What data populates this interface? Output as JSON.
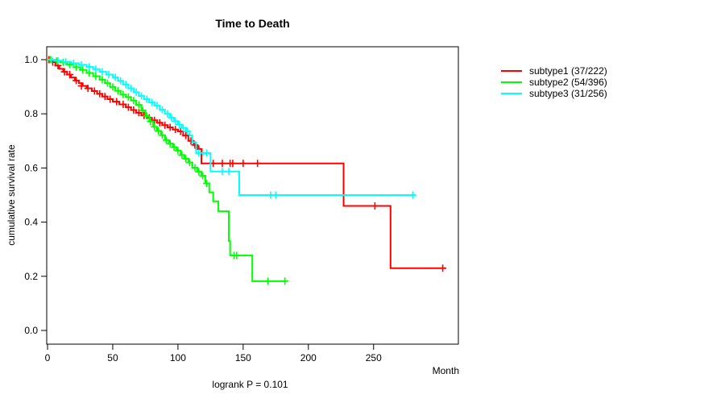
{
  "chart_data": {
    "type": "line",
    "variant": "kaplan-meier-step",
    "title": "Time to Death",
    "xlabel": "Month",
    "ylabel": "cumulative survival rate",
    "footnote": "logrank P = 0.101",
    "xlim": [
      0,
      315
    ],
    "ylim": [
      0,
      1
    ],
    "xticks": [
      0,
      50,
      100,
      150,
      200,
      250
    ],
    "yticks": [
      0.0,
      0.2,
      0.4,
      0.6,
      0.8,
      1.0
    ],
    "grid": false,
    "legend_position": "right-outside",
    "frame_color": "#000000",
    "series": [
      {
        "name": "subtype1",
        "label": "subtype1 (37/222)",
        "color": "#FF0000",
        "events": 37,
        "n": 222,
        "end_time": 305,
        "steps": [
          [
            0,
            1.0
          ],
          [
            3,
            0.991
          ],
          [
            6,
            0.978
          ],
          [
            9,
            0.966
          ],
          [
            12,
            0.955
          ],
          [
            15,
            0.945
          ],
          [
            18,
            0.934
          ],
          [
            21,
            0.923
          ],
          [
            24,
            0.913
          ],
          [
            27,
            0.903
          ],
          [
            30,
            0.894
          ],
          [
            34,
            0.884
          ],
          [
            38,
            0.874
          ],
          [
            42,
            0.864
          ],
          [
            46,
            0.854
          ],
          [
            50,
            0.845
          ],
          [
            55,
            0.835
          ],
          [
            60,
            0.824
          ],
          [
            64,
            0.814
          ],
          [
            68,
            0.804
          ],
          [
            72,
            0.794
          ],
          [
            76,
            0.785
          ],
          [
            80,
            0.776
          ],
          [
            84,
            0.767
          ],
          [
            88,
            0.758
          ],
          [
            92,
            0.75
          ],
          [
            96,
            0.742
          ],
          [
            100,
            0.735
          ],
          [
            104,
            0.72
          ],
          [
            108,
            0.7
          ],
          [
            112,
            0.685
          ],
          [
            115,
            0.67
          ],
          [
            118,
            0.617
          ],
          [
            227,
            0.46
          ],
          [
            263,
            0.23
          ]
        ],
        "censors": [
          [
            1,
            1.0
          ],
          [
            4,
            0.991
          ],
          [
            8,
            0.978
          ],
          [
            13,
            0.955
          ],
          [
            17,
            0.945
          ],
          [
            22,
            0.923
          ],
          [
            26,
            0.903
          ],
          [
            31,
            0.894
          ],
          [
            36,
            0.884
          ],
          [
            40,
            0.874
          ],
          [
            44,
            0.864
          ],
          [
            48,
            0.854
          ],
          [
            53,
            0.845
          ],
          [
            58,
            0.835
          ],
          [
            62,
            0.824
          ],
          [
            66,
            0.814
          ],
          [
            70,
            0.804
          ],
          [
            74,
            0.794
          ],
          [
            78,
            0.785
          ],
          [
            82,
            0.776
          ],
          [
            86,
            0.767
          ],
          [
            90,
            0.758
          ],
          [
            94,
            0.75
          ],
          [
            98,
            0.742
          ],
          [
            102,
            0.735
          ],
          [
            106,
            0.72
          ],
          [
            110,
            0.7
          ],
          [
            113,
            0.685
          ],
          [
            116,
            0.67
          ],
          [
            127,
            0.617
          ],
          [
            134,
            0.617
          ],
          [
            140,
            0.617
          ],
          [
            142,
            0.617
          ],
          [
            150,
            0.617
          ],
          [
            161,
            0.617
          ],
          [
            251,
            0.46
          ],
          [
            303,
            0.23
          ]
        ]
      },
      {
        "name": "subtype2",
        "label": "subtype2 (54/396)",
        "color": "#00FF00",
        "events": 54,
        "n": 396,
        "end_time": 183,
        "steps": [
          [
            0,
            1.0
          ],
          [
            5,
            0.995
          ],
          [
            10,
            0.99
          ],
          [
            15,
            0.982
          ],
          [
            20,
            0.972
          ],
          [
            25,
            0.962
          ],
          [
            30,
            0.951
          ],
          [
            35,
            0.939
          ],
          [
            40,
            0.926
          ],
          [
            44,
            0.913
          ],
          [
            48,
            0.899
          ],
          [
            52,
            0.885
          ],
          [
            56,
            0.871
          ],
          [
            60,
            0.862
          ],
          [
            64,
            0.849
          ],
          [
            68,
            0.833
          ],
          [
            72,
            0.812
          ],
          [
            75,
            0.792
          ],
          [
            78,
            0.772
          ],
          [
            81,
            0.752
          ],
          [
            84,
            0.737
          ],
          [
            87,
            0.721
          ],
          [
            90,
            0.703
          ],
          [
            93,
            0.69
          ],
          [
            96,
            0.677
          ],
          [
            99,
            0.664
          ],
          [
            102,
            0.648
          ],
          [
            105,
            0.634
          ],
          [
            108,
            0.62
          ],
          [
            111,
            0.601
          ],
          [
            115,
            0.586
          ],
          [
            118,
            0.571
          ],
          [
            121,
            0.543
          ],
          [
            124,
            0.51
          ],
          [
            127,
            0.477
          ],
          [
            131,
            0.44
          ],
          [
            139,
            0.33
          ],
          [
            140,
            0.277
          ],
          [
            157,
            0.182
          ]
        ],
        "censors": [
          [
            2,
            1.0
          ],
          [
            7,
            0.995
          ],
          [
            12,
            0.99
          ],
          [
            17,
            0.982
          ],
          [
            22,
            0.972
          ],
          [
            27,
            0.962
          ],
          [
            32,
            0.951
          ],
          [
            37,
            0.939
          ],
          [
            42,
            0.926
          ],
          [
            46,
            0.913
          ],
          [
            50,
            0.899
          ],
          [
            54,
            0.885
          ],
          [
            58,
            0.871
          ],
          [
            62,
            0.862
          ],
          [
            66,
            0.849
          ],
          [
            70,
            0.833
          ],
          [
            73,
            0.812
          ],
          [
            76,
            0.792
          ],
          [
            79,
            0.772
          ],
          [
            82,
            0.752
          ],
          [
            85,
            0.737
          ],
          [
            88,
            0.721
          ],
          [
            91,
            0.703
          ],
          [
            94,
            0.69
          ],
          [
            97,
            0.677
          ],
          [
            100,
            0.664
          ],
          [
            103,
            0.648
          ],
          [
            106,
            0.634
          ],
          [
            109,
            0.62
          ],
          [
            113,
            0.601
          ],
          [
            116,
            0.586
          ],
          [
            119,
            0.571
          ],
          [
            122,
            0.543
          ],
          [
            143,
            0.277
          ],
          [
            145,
            0.277
          ],
          [
            169,
            0.182
          ],
          [
            182,
            0.182
          ]
        ]
      },
      {
        "name": "subtype3",
        "label": "subtype3 (31/256)",
        "color": "#00FFFF",
        "events": 31,
        "n": 256,
        "end_time": 282,
        "steps": [
          [
            0,
            1.0
          ],
          [
            6,
            0.996
          ],
          [
            12,
            0.992
          ],
          [
            18,
            0.987
          ],
          [
            24,
            0.981
          ],
          [
            30,
            0.973
          ],
          [
            35,
            0.965
          ],
          [
            40,
            0.955
          ],
          [
            45,
            0.945
          ],
          [
            50,
            0.935
          ],
          [
            54,
            0.922
          ],
          [
            58,
            0.908
          ],
          [
            62,
            0.894
          ],
          [
            66,
            0.88
          ],
          [
            70,
            0.866
          ],
          [
            74,
            0.854
          ],
          [
            78,
            0.842
          ],
          [
            82,
            0.83
          ],
          [
            86,
            0.815
          ],
          [
            90,
            0.8
          ],
          [
            94,
            0.786
          ],
          [
            97,
            0.773
          ],
          [
            100,
            0.76
          ],
          [
            103,
            0.748
          ],
          [
            106,
            0.736
          ],
          [
            109,
            0.72
          ],
          [
            111,
            0.695
          ],
          [
            114,
            0.655
          ],
          [
            125,
            0.587
          ],
          [
            147,
            0.5
          ]
        ],
        "censors": [
          [
            3,
            1.0
          ],
          [
            8,
            0.996
          ],
          [
            14,
            0.992
          ],
          [
            20,
            0.987
          ],
          [
            26,
            0.981
          ],
          [
            32,
            0.973
          ],
          [
            37,
            0.965
          ],
          [
            42,
            0.955
          ],
          [
            47,
            0.945
          ],
          [
            52,
            0.935
          ],
          [
            56,
            0.922
          ],
          [
            60,
            0.908
          ],
          [
            64,
            0.894
          ],
          [
            68,
            0.88
          ],
          [
            72,
            0.866
          ],
          [
            76,
            0.854
          ],
          [
            80,
            0.842
          ],
          [
            84,
            0.83
          ],
          [
            88,
            0.815
          ],
          [
            92,
            0.8
          ],
          [
            95,
            0.786
          ],
          [
            98,
            0.773
          ],
          [
            101,
            0.76
          ],
          [
            104,
            0.748
          ],
          [
            107,
            0.736
          ],
          [
            116,
            0.655
          ],
          [
            119,
            0.655
          ],
          [
            122,
            0.655
          ],
          [
            134,
            0.587
          ],
          [
            139,
            0.587
          ],
          [
            171,
            0.5
          ],
          [
            175,
            0.5
          ],
          [
            280,
            0.5
          ]
        ]
      }
    ]
  }
}
